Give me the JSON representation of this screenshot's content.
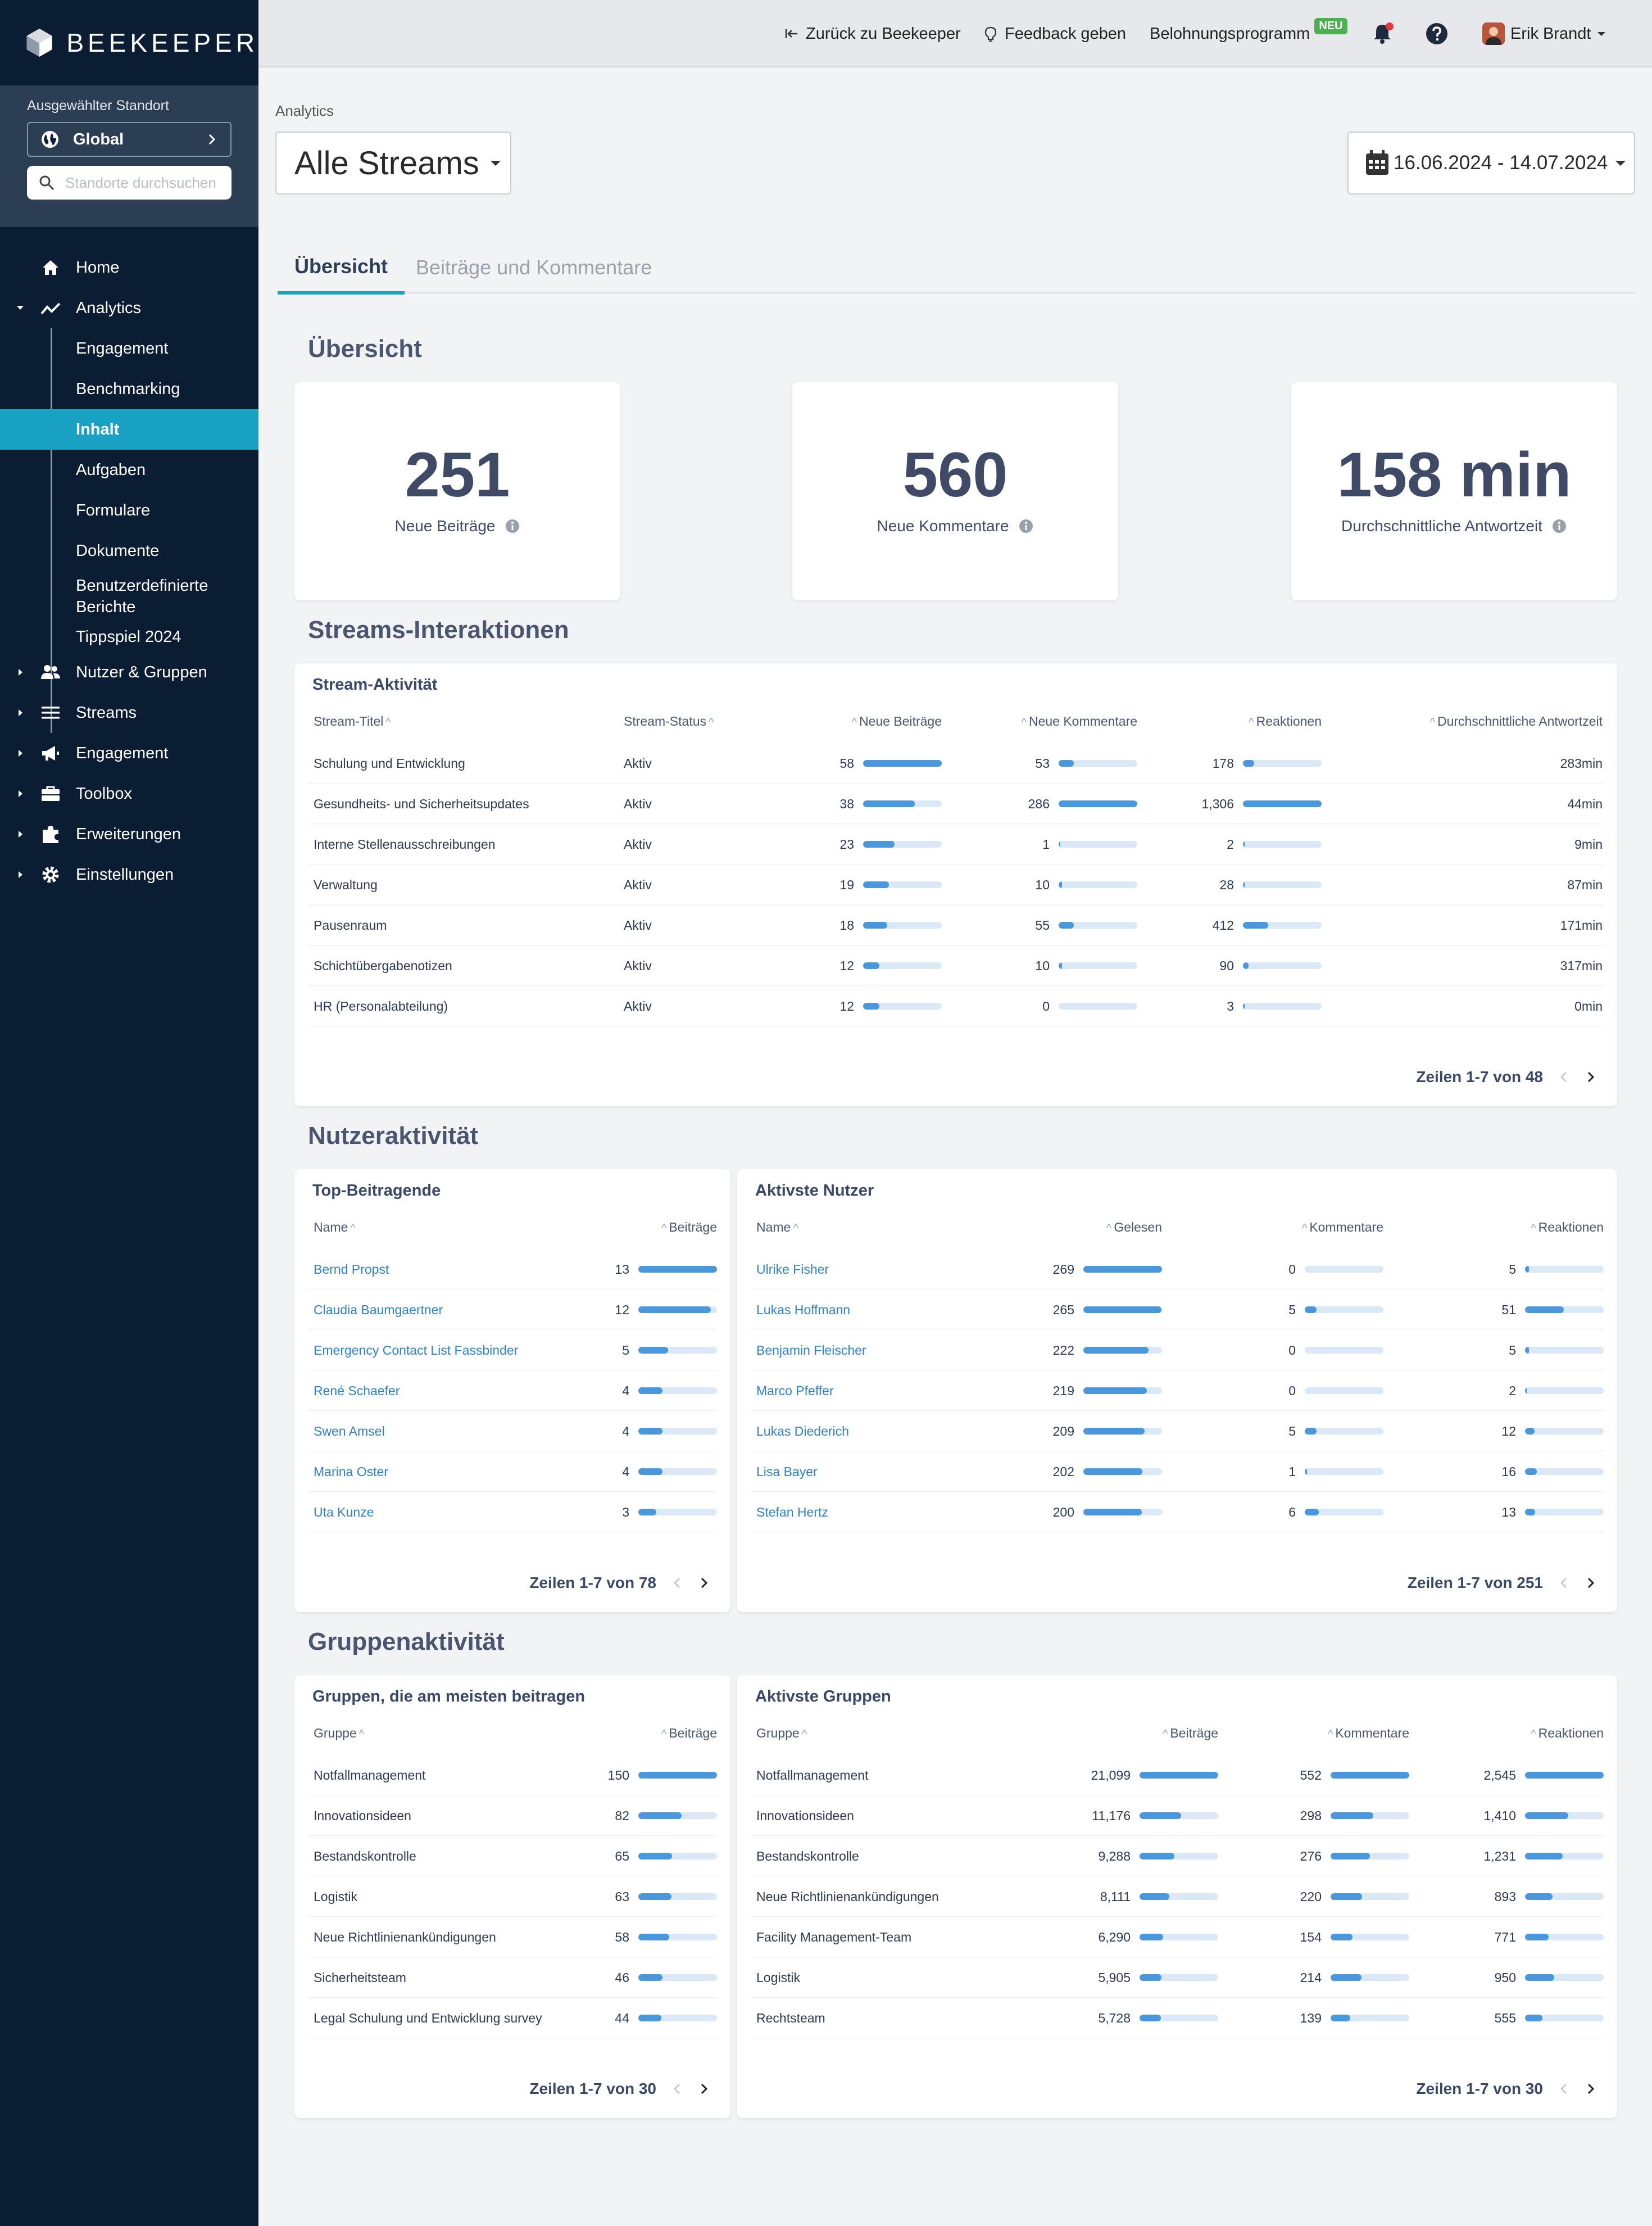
{
  "brand": {
    "name": "BEEKEEPER"
  },
  "site": {
    "label": "Ausgewählter Standort",
    "selected": "Global",
    "search_placeholder": "Standorte durchsuchen"
  },
  "nav": {
    "home": "Home",
    "analytics": "Analytics",
    "analytics_sub": [
      "Engagement",
      "Benchmarking",
      "Inhalt",
      "Aufgaben",
      "Formulare",
      "Dokumente",
      "Benutzerdefinierte Berichte",
      "Tippspiel 2024"
    ],
    "users": "Nutzer & Gruppen",
    "streams": "Streams",
    "engagement": "Engagement",
    "toolbox": "Toolbox",
    "extensions": "Erweiterungen",
    "settings": "Einstellungen"
  },
  "topbar": {
    "back": "Zurück zu Beekeeper",
    "feedback": "Feedback geben",
    "rewards": "Belohnungsprogramm",
    "rewards_badge": "NEU",
    "user": "Erik Brandt"
  },
  "page": {
    "breadcrumb": "Analytics",
    "stream_select": "Alle Streams",
    "date_range": "16.06.2024 - 14.07.2024",
    "tabs": [
      "Übersicht",
      "Beiträge und Kommentare"
    ]
  },
  "overview": {
    "title": "Übersicht",
    "kpis": [
      {
        "value": "251",
        "label": "Neue Beiträge"
      },
      {
        "value": "560",
        "label": "Neue Kommentare"
      },
      {
        "value": "158 min",
        "label": "Durchschnittliche Antwortzeit"
      }
    ]
  },
  "streams": {
    "section": "Streams-Interaktionen",
    "card_title": "Stream-Aktivität",
    "headers": [
      "Stream-Titel",
      "Stream-Status",
      "Neue Beiträge",
      "Neue Kommentare",
      "Reaktionen",
      "Durchschnittliche Antwortzeit"
    ],
    "rows": [
      {
        "title": "Schulung und Entwicklung",
        "status": "Aktiv",
        "posts": "58",
        "posts_pct": 100,
        "comments": "53",
        "comments_pct": 19,
        "reactions": "178",
        "reactions_pct": 14,
        "time": "283min"
      },
      {
        "title": "Gesundheits- und Sicherheitsupdates",
        "status": "Aktiv",
        "posts": "38",
        "posts_pct": 66,
        "comments": "286",
        "comments_pct": 100,
        "reactions": "1,306",
        "reactions_pct": 100,
        "time": "44min"
      },
      {
        "title": "Interne Stellenausschreibungen",
        "status": "Aktiv",
        "posts": "23",
        "posts_pct": 40,
        "comments": "1",
        "comments_pct": 1,
        "reactions": "2",
        "reactions_pct": 1,
        "time": "9min"
      },
      {
        "title": "Verwaltung",
        "status": "Aktiv",
        "posts": "19",
        "posts_pct": 33,
        "comments": "10",
        "comments_pct": 4,
        "reactions": "28",
        "reactions_pct": 2,
        "time": "87min"
      },
      {
        "title": "Pausenraum",
        "status": "Aktiv",
        "posts": "18",
        "posts_pct": 31,
        "comments": "55",
        "comments_pct": 19,
        "reactions": "412",
        "reactions_pct": 32,
        "time": "171min"
      },
      {
        "title": "Schichtübergabenotizen",
        "status": "Aktiv",
        "posts": "12",
        "posts_pct": 21,
        "comments": "10",
        "comments_pct": 4,
        "reactions": "90",
        "reactions_pct": 7,
        "time": "317min"
      },
      {
        "title": "HR (Personalabteilung)",
        "status": "Aktiv",
        "posts": "12",
        "posts_pct": 21,
        "comments": "0",
        "comments_pct": 0,
        "reactions": "3",
        "reactions_pct": 1,
        "time": "0min"
      }
    ],
    "pager": "Zeilen 1-7 von 48"
  },
  "user_activity": {
    "section": "Nutzeraktivität",
    "top": {
      "title": "Top-Beitragende",
      "headers": [
        "Name",
        "Beiträge"
      ],
      "rows": [
        {
          "name": "Bernd Propst",
          "posts": "13",
          "pct": 100
        },
        {
          "name": "Claudia Baumgaertner",
          "posts": "12",
          "pct": 92
        },
        {
          "name": "Emergency Contact List Fassbinder",
          "posts": "5",
          "pct": 38
        },
        {
          "name": "René Schaefer",
          "posts": "4",
          "pct": 31
        },
        {
          "name": "Swen Amsel",
          "posts": "4",
          "pct": 31
        },
        {
          "name": "Marina Oster",
          "posts": "4",
          "pct": 31
        },
        {
          "name": "Uta Kunze",
          "posts": "3",
          "pct": 23
        }
      ],
      "pager": "Zeilen 1-7 von 78"
    },
    "active": {
      "title": "Aktivste Nutzer",
      "headers": [
        "Name",
        "Gelesen",
        "Kommentare",
        "Reaktionen"
      ],
      "rows": [
        {
          "name": "Ulrike Fisher",
          "read": "269",
          "read_pct": 100,
          "comments": "0",
          "comments_pct": 0,
          "reactions": "5",
          "reactions_pct": 5
        },
        {
          "name": "Lukas Hoffmann",
          "read": "265",
          "read_pct": 99,
          "comments": "5",
          "comments_pct": 15,
          "reactions": "51",
          "reactions_pct": 49
        },
        {
          "name": "Benjamin Fleischer",
          "read": "222",
          "read_pct": 83,
          "comments": "0",
          "comments_pct": 0,
          "reactions": "5",
          "reactions_pct": 5
        },
        {
          "name": "Marco Pfeffer",
          "read": "219",
          "read_pct": 81,
          "comments": "0",
          "comments_pct": 0,
          "reactions": "2",
          "reactions_pct": 2
        },
        {
          "name": "Lukas Diederich",
          "read": "209",
          "read_pct": 78,
          "comments": "5",
          "comments_pct": 15,
          "reactions": "12",
          "reactions_pct": 12
        },
        {
          "name": "Lisa Bayer",
          "read": "202",
          "read_pct": 75,
          "comments": "1",
          "comments_pct": 3,
          "reactions": "16",
          "reactions_pct": 15
        },
        {
          "name": "Stefan Hertz",
          "read": "200",
          "read_pct": 74,
          "comments": "6",
          "comments_pct": 18,
          "reactions": "13",
          "reactions_pct": 13
        }
      ],
      "pager": "Zeilen 1-7 von 251"
    }
  },
  "group_activity": {
    "section": "Gruppenaktivität",
    "top": {
      "title": "Gruppen, die am meisten beitragen",
      "headers": [
        "Gruppe",
        "Beiträge"
      ],
      "rows": [
        {
          "name": "Notfallmanagement",
          "posts": "150",
          "pct": 100
        },
        {
          "name": "Innovationsideen",
          "posts": "82",
          "pct": 55
        },
        {
          "name": "Bestandskontrolle",
          "posts": "65",
          "pct": 43
        },
        {
          "name": "Logistik",
          "posts": "63",
          "pct": 42
        },
        {
          "name": "Neue Richtlinienankündigungen",
          "posts": "58",
          "pct": 39
        },
        {
          "name": "Sicherheitsteam",
          "posts": "46",
          "pct": 31
        },
        {
          "name": "Legal Schulung und Entwicklung survey",
          "posts": "44",
          "pct": 29
        }
      ],
      "pager": "Zeilen 1-7 von 30"
    },
    "active": {
      "title": "Aktivste Gruppen",
      "headers": [
        "Gruppe",
        "Beiträge",
        "Kommentare",
        "Reaktionen"
      ],
      "rows": [
        {
          "name": "Notfallmanagement",
          "posts": "21,099",
          "posts_pct": 100,
          "comments": "552",
          "comments_pct": 100,
          "reactions": "2,545",
          "reactions_pct": 100
        },
        {
          "name": "Innovationsideen",
          "posts": "11,176",
          "posts_pct": 53,
          "comments": "298",
          "comments_pct": 54,
          "reactions": "1,410",
          "reactions_pct": 55
        },
        {
          "name": "Bestandskontrolle",
          "posts": "9,288",
          "posts_pct": 44,
          "comments": "276",
          "comments_pct": 50,
          "reactions": "1,231",
          "reactions_pct": 48
        },
        {
          "name": "Neue Richtlinienankündigungen",
          "posts": "8,111",
          "posts_pct": 38,
          "comments": "220",
          "comments_pct": 40,
          "reactions": "893",
          "reactions_pct": 35
        },
        {
          "name": "Facility Management-Team",
          "posts": "6,290",
          "posts_pct": 30,
          "comments": "154",
          "comments_pct": 28,
          "reactions": "771",
          "reactions_pct": 30
        },
        {
          "name": "Logistik",
          "posts": "5,905",
          "posts_pct": 28,
          "comments": "214",
          "comments_pct": 39,
          "reactions": "950",
          "reactions_pct": 37
        },
        {
          "name": "Rechtsteam",
          "posts": "5,728",
          "posts_pct": 27,
          "comments": "139",
          "comments_pct": 25,
          "reactions": "555",
          "reactions_pct": 22
        }
      ],
      "pager": "Zeilen 1-7 von 30"
    }
  },
  "colors": {
    "sidebar": "#0b1d33",
    "accent": "#1aa2c4",
    "bar": "#4a97dc",
    "bar_track": "#dbe9f7",
    "link": "#2f82c8"
  }
}
